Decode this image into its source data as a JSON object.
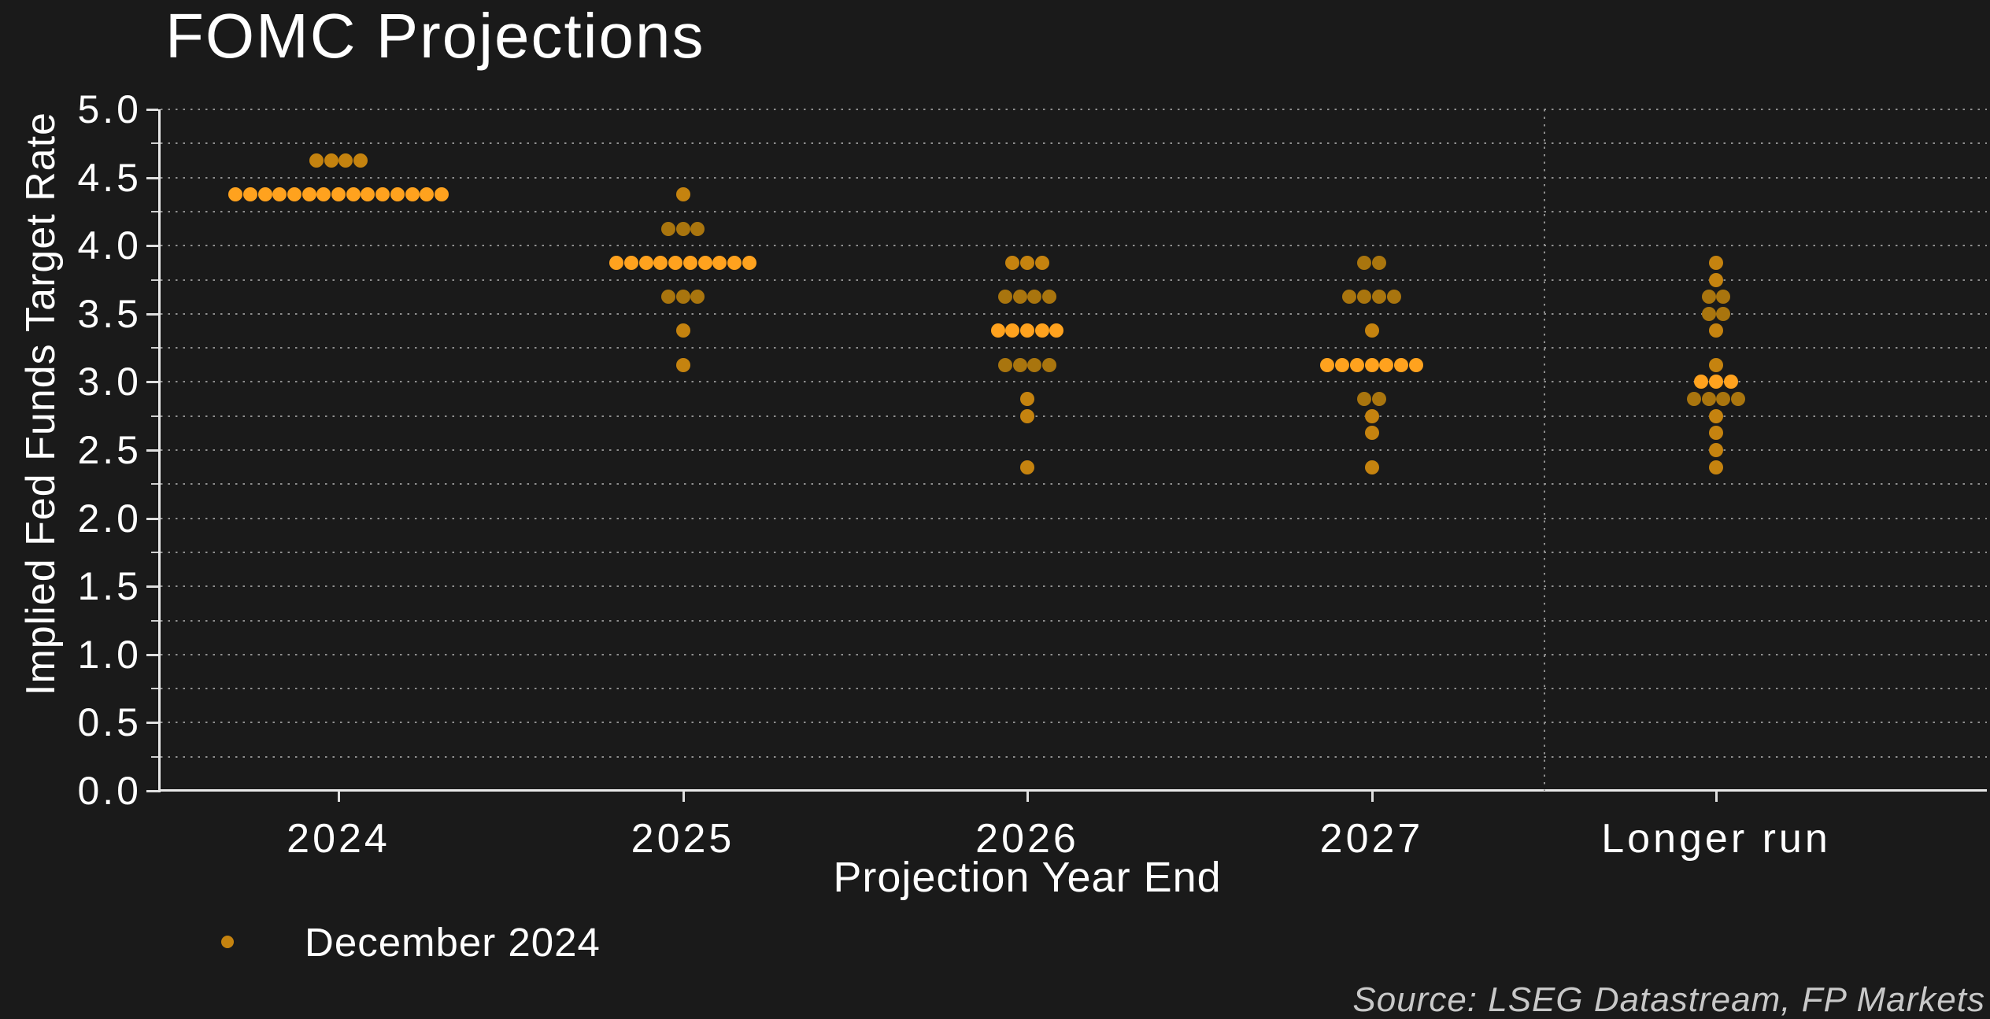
{
  "title": "FOMC Projections",
  "legend": {
    "label": "December 2024",
    "marker": "orange-dot"
  },
  "source_note": "Source: LSEG Datastream, FP Markets",
  "colors": {
    "background": "#1a1a1a",
    "text": "#ffffff",
    "gridline": "#8f8f8f",
    "axis": "#e8e8e8",
    "source_text": "#c8c8c8",
    "dot_bright": "#ffa21e",
    "dot_medium": "#c5830f",
    "dot_dark": "#a9750e"
  },
  "chart_data": {
    "type": "scatter",
    "subtype": "dot-plot",
    "title": "FOMC Projections",
    "xlabel": "Projection Year End",
    "ylabel": "Implied Fed Funds Target Rate",
    "ylim": [
      0.0,
      5.0
    ],
    "y_major_step": 0.5,
    "y_minor_step": 0.25,
    "grid": "dotted horizontal every 0.25, dotted vertical separator before Longer run",
    "legend_position": "bottom-left",
    "y_tick_labels": [
      "0.0",
      "0.5",
      "1.0",
      "1.5",
      "2.0",
      "2.5",
      "3.0",
      "3.5",
      "4.0",
      "4.5",
      "5.0"
    ],
    "categories": [
      "2024",
      "2025",
      "2026",
      "2027",
      "Longer run"
    ],
    "series": [
      {
        "name": "December 2024",
        "note": "each dot = one FOMC participant; shade 'bright' marks the median row",
        "distributions": [
          {
            "category": "2024",
            "dots": [
              {
                "rate": 4.625,
                "count": 4,
                "shade": "medium"
              },
              {
                "rate": 4.375,
                "count": 15,
                "shade": "bright"
              }
            ]
          },
          {
            "category": "2025",
            "dots": [
              {
                "rate": 4.375,
                "count": 1,
                "shade": "medium"
              },
              {
                "rate": 4.125,
                "count": 3,
                "shade": "dark"
              },
              {
                "rate": 3.875,
                "count": 10,
                "shade": "bright"
              },
              {
                "rate": 3.625,
                "count": 3,
                "shade": "dark"
              },
              {
                "rate": 3.375,
                "count": 1,
                "shade": "medium"
              },
              {
                "rate": 3.125,
                "count": 1,
                "shade": "medium"
              }
            ]
          },
          {
            "category": "2026",
            "dots": [
              {
                "rate": 3.875,
                "count": 3,
                "shade": "medium"
              },
              {
                "rate": 3.625,
                "count": 4,
                "shade": "dark"
              },
              {
                "rate": 3.375,
                "count": 5,
                "shade": "bright"
              },
              {
                "rate": 3.125,
                "count": 4,
                "shade": "dark"
              },
              {
                "rate": 2.875,
                "count": 1,
                "shade": "medium"
              },
              {
                "rate": 2.75,
                "count": 1,
                "shade": "medium"
              },
              {
                "rate": 2.375,
                "count": 1,
                "shade": "medium"
              }
            ]
          },
          {
            "category": "2027",
            "dots": [
              {
                "rate": 3.875,
                "count": 2,
                "shade": "dark"
              },
              {
                "rate": 3.625,
                "count": 4,
                "shade": "dark"
              },
              {
                "rate": 3.375,
                "count": 1,
                "shade": "medium"
              },
              {
                "rate": 3.125,
                "count": 7,
                "shade": "bright"
              },
              {
                "rate": 2.875,
                "count": 2,
                "shade": "dark"
              },
              {
                "rate": 2.75,
                "count": 1,
                "shade": "medium"
              },
              {
                "rate": 2.625,
                "count": 1,
                "shade": "medium"
              },
              {
                "rate": 2.375,
                "count": 1,
                "shade": "medium"
              }
            ]
          },
          {
            "category": "Longer run",
            "dots": [
              {
                "rate": 3.875,
                "count": 1,
                "shade": "medium"
              },
              {
                "rate": 3.75,
                "count": 1,
                "shade": "medium"
              },
              {
                "rate": 3.625,
                "count": 2,
                "shade": "dark"
              },
              {
                "rate": 3.5,
                "count": 2,
                "shade": "dark"
              },
              {
                "rate": 3.375,
                "count": 1,
                "shade": "medium"
              },
              {
                "rate": 3.125,
                "count": 1,
                "shade": "medium"
              },
              {
                "rate": 3.0,
                "count": 3,
                "shade": "bright"
              },
              {
                "rate": 2.875,
                "count": 4,
                "shade": "dark"
              },
              {
                "rate": 2.75,
                "count": 1,
                "shade": "medium"
              },
              {
                "rate": 2.625,
                "count": 1,
                "shade": "medium"
              },
              {
                "rate": 2.5,
                "count": 1,
                "shade": "medium"
              },
              {
                "rate": 2.375,
                "count": 1,
                "shade": "medium"
              }
            ]
          }
        ]
      }
    ]
  }
}
